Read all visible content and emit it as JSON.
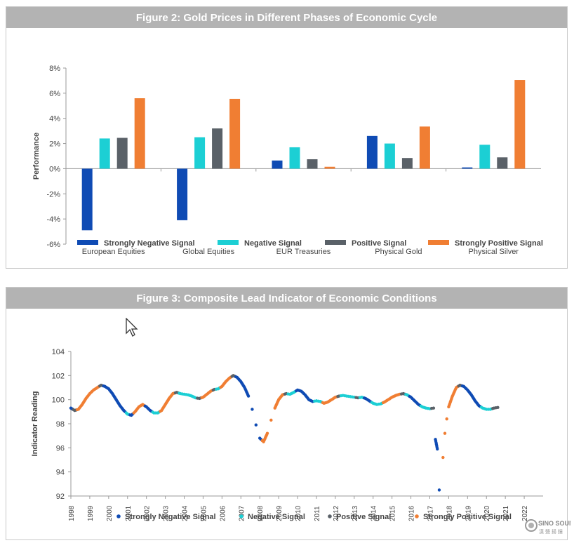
{
  "charts": [
    {
      "title": "Figure 2: Gold Prices in Different Phases of Economic Cycle"
    },
    {
      "title": "Figure 3: Composite Lead Indicator of Economic Conditions"
    }
  ],
  "chart_data": [
    {
      "type": "bar",
      "title": "Figure 2: Gold Prices in Different Phases of Economic Cycle",
      "xlabel": "",
      "ylabel": "Performance",
      "ylim": [
        -6,
        8
      ],
      "yticks": [
        -6,
        -4,
        -2,
        0,
        2,
        4,
        6,
        8
      ],
      "ytick_labels": [
        "-6%",
        "-4%",
        "-2%",
        "0%",
        "2%",
        "4%",
        "6%",
        "8%"
      ],
      "categories": [
        "European Equities",
        "Global Equities",
        "EUR Treasuries",
        "Physical Gold",
        "Physical Silver"
      ],
      "series": [
        {
          "name": "Strongly Negative Signal",
          "color": "#0f4bb4",
          "values": [
            -4.9,
            -4.1,
            0.65,
            2.6,
            0.1
          ]
        },
        {
          "name": "Negative Signal",
          "color": "#1ccfd4",
          "values": [
            2.4,
            2.5,
            1.7,
            2.0,
            1.9
          ]
        },
        {
          "name": "Positive Signal",
          "color": "#5a6168",
          "values": [
            2.45,
            3.2,
            0.75,
            0.85,
            0.9
          ]
        },
        {
          "name": "Strongly Positive Signal",
          "color": "#f07e33",
          "values": [
            5.6,
            5.55,
            0.15,
            3.35,
            7.05
          ]
        }
      ],
      "legend": "bottom",
      "grid": false
    },
    {
      "type": "scatter",
      "title": "Figure 3: Composite Lead Indicator of Economic Conditions",
      "xlabel": "",
      "ylabel": "Indicator Reading",
      "ylim": [
        92,
        104
      ],
      "yticks": [
        92,
        94,
        96,
        98,
        100,
        102,
        104
      ],
      "xlim": [
        1998,
        2023
      ],
      "xticks": [
        "1998",
        "1999",
        "2000",
        "2001",
        "2002",
        "2003",
        "2004",
        "2005",
        "2006",
        "2007",
        "2008",
        "2009",
        "2010",
        "2011",
        "2012",
        "2013",
        "2014",
        "2015",
        "2016",
        "2017",
        "2018",
        "2019",
        "2020",
        "2021",
        "2022"
      ],
      "legend": "bottom",
      "grid": false,
      "series": [
        {
          "name": "Strongly Negative Signal",
          "color": "#0f4bb4"
        },
        {
          "name": "Negative Signal",
          "color": "#1ccfd4"
        },
        {
          "name": "Positive Signal",
          "color": "#5a6168"
        },
        {
          "name": "Strongly Positive Signal",
          "color": "#f07e33"
        }
      ],
      "points": [
        [
          1998.0,
          99.3,
          0
        ],
        [
          1998.2,
          99.1,
          2
        ],
        [
          1998.4,
          99.2,
          3
        ],
        [
          1998.6,
          99.6,
          3
        ],
        [
          1998.8,
          100.1,
          3
        ],
        [
          1999.0,
          100.5,
          3
        ],
        [
          1999.2,
          100.8,
          3
        ],
        [
          1999.4,
          101.0,
          3
        ],
        [
          1999.6,
          101.2,
          2
        ],
        [
          1999.8,
          101.1,
          0
        ],
        [
          2000.0,
          100.9,
          0
        ],
        [
          2000.2,
          100.5,
          0
        ],
        [
          2000.4,
          100.0,
          0
        ],
        [
          2000.6,
          99.5,
          0
        ],
        [
          2000.8,
          99.1,
          0
        ],
        [
          2001.0,
          98.8,
          1
        ],
        [
          2001.2,
          98.7,
          0
        ],
        [
          2001.4,
          99.0,
          3
        ],
        [
          2001.6,
          99.4,
          3
        ],
        [
          2001.8,
          99.6,
          3
        ],
        [
          2002.0,
          99.4,
          0
        ],
        [
          2002.2,
          99.1,
          0
        ],
        [
          2002.4,
          98.9,
          1
        ],
        [
          2002.6,
          98.9,
          1
        ],
        [
          2002.8,
          99.1,
          3
        ],
        [
          2003.0,
          99.6,
          3
        ],
        [
          2003.2,
          100.1,
          3
        ],
        [
          2003.4,
          100.5,
          3
        ],
        [
          2003.6,
          100.6,
          2
        ],
        [
          2003.8,
          100.5,
          1
        ],
        [
          2004.0,
          100.45,
          1
        ],
        [
          2004.2,
          100.4,
          1
        ],
        [
          2004.4,
          100.3,
          1
        ],
        [
          2004.6,
          100.15,
          1
        ],
        [
          2004.8,
          100.1,
          2
        ],
        [
          2005.0,
          100.2,
          3
        ],
        [
          2005.2,
          100.45,
          3
        ],
        [
          2005.4,
          100.7,
          3
        ],
        [
          2005.6,
          100.85,
          2
        ],
        [
          2005.8,
          100.9,
          1
        ],
        [
          2006.0,
          101.1,
          3
        ],
        [
          2006.2,
          101.5,
          3
        ],
        [
          2006.4,
          101.8,
          3
        ],
        [
          2006.6,
          102.0,
          2
        ],
        [
          2006.8,
          101.85,
          0
        ],
        [
          2007.0,
          101.5,
          0
        ],
        [
          2007.2,
          101.0,
          0
        ],
        [
          2007.4,
          100.3,
          0
        ],
        [
          2007.6,
          99.2,
          0
        ],
        [
          2007.8,
          97.9,
          0
        ],
        [
          2008.0,
          96.8,
          0
        ],
        [
          2008.2,
          96.5,
          3
        ],
        [
          2008.4,
          97.2,
          3
        ],
        [
          2008.6,
          98.3,
          3
        ],
        [
          2008.8,
          99.3,
          3
        ],
        [
          2009.0,
          100.0,
          3
        ],
        [
          2009.2,
          100.4,
          3
        ],
        [
          2009.4,
          100.5,
          2
        ],
        [
          2009.6,
          100.45,
          1
        ],
        [
          2009.8,
          100.6,
          1
        ],
        [
          2010.0,
          100.8,
          0
        ],
        [
          2010.2,
          100.7,
          0
        ],
        [
          2010.4,
          100.4,
          0
        ],
        [
          2010.6,
          100.0,
          0
        ],
        [
          2010.8,
          99.85,
          0
        ],
        [
          2011.0,
          99.9,
          1
        ],
        [
          2011.2,
          99.85,
          1
        ],
        [
          2011.4,
          99.7,
          3
        ],
        [
          2011.6,
          99.8,
          3
        ],
        [
          2011.8,
          100.0,
          3
        ],
        [
          2012.0,
          100.2,
          3
        ],
        [
          2012.2,
          100.3,
          2
        ],
        [
          2012.4,
          100.35,
          1
        ],
        [
          2012.6,
          100.3,
          1
        ],
        [
          2012.8,
          100.25,
          1
        ],
        [
          2013.0,
          100.2,
          1
        ],
        [
          2013.2,
          100.15,
          2
        ],
        [
          2013.4,
          100.2,
          1
        ],
        [
          2013.6,
          100.1,
          0
        ],
        [
          2013.8,
          99.9,
          0
        ],
        [
          2014.0,
          99.7,
          1
        ],
        [
          2014.2,
          99.6,
          1
        ],
        [
          2014.4,
          99.65,
          1
        ],
        [
          2014.6,
          99.8,
          3
        ],
        [
          2014.8,
          100.0,
          3
        ],
        [
          2015.0,
          100.2,
          3
        ],
        [
          2015.2,
          100.35,
          3
        ],
        [
          2015.4,
          100.45,
          3
        ],
        [
          2015.6,
          100.5,
          2
        ],
        [
          2015.8,
          100.4,
          1
        ],
        [
          2016.0,
          100.2,
          0
        ],
        [
          2016.2,
          99.9,
          0
        ],
        [
          2016.4,
          99.6,
          0
        ],
        [
          2016.6,
          99.4,
          1
        ],
        [
          2016.8,
          99.3,
          1
        ],
        [
          2017.0,
          99.25,
          1
        ],
        [
          2017.2,
          99.3,
          2
        ],
        [
          2017.3,
          96.7,
          0
        ],
        [
          2017.4,
          95.9,
          0
        ],
        [
          2017.5,
          92.5,
          0
        ],
        [
          2017.7,
          95.2,
          3
        ],
        [
          2017.8,
          97.2,
          3
        ],
        [
          2017.9,
          98.4,
          3
        ],
        [
          2018.0,
          99.4,
          3
        ],
        [
          2018.2,
          100.3,
          3
        ],
        [
          2018.4,
          101.0,
          3
        ],
        [
          2018.6,
          101.2,
          2
        ],
        [
          2018.8,
          101.1,
          0
        ],
        [
          2019.0,
          100.8,
          0
        ],
        [
          2019.2,
          100.4,
          0
        ],
        [
          2019.4,
          99.9,
          0
        ],
        [
          2019.6,
          99.5,
          0
        ],
        [
          2019.8,
          99.3,
          1
        ],
        [
          2020.0,
          99.2,
          1
        ],
        [
          2020.2,
          99.2,
          1
        ],
        [
          2020.4,
          99.3,
          2
        ],
        [
          2020.6,
          99.35,
          2
        ]
      ]
    }
  ],
  "watermark": {
    "text": "SINO SOUND",
    "subtext": "漢 聲 揚 鐘"
  }
}
